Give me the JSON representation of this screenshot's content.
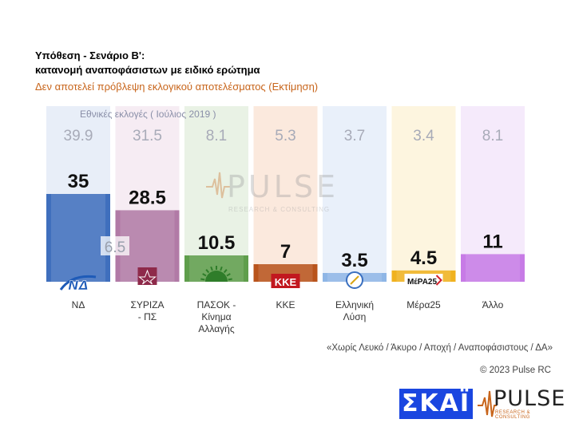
{
  "header": {
    "title_line1": "Υπόθεση - Σενάριο Β':",
    "title_line2": "κατανομή αναποφάσιστων με ειδικό ερώτημα",
    "subtitle": "Δεν αποτελεί πρόβλεψη εκλογικού αποτελέσματος   (Εκτίμηση)"
  },
  "chart_data": {
    "type": "bar",
    "categories": [
      "ΝΔ",
      "ΣΥΡΙΖΑ - ΠΣ",
      "ΠΑΣΟΚ - Κίνημα Αλλαγής",
      "ΚΚΕ",
      "Ελληνική Λύση",
      "Μέρα25",
      "Άλλο"
    ],
    "category_label_lines": [
      [
        "ΝΔ"
      ],
      [
        "ΣΥΡΙΖΑ",
        "- ΠΣ"
      ],
      [
        "ΠΑΣΟΚ -",
        "Κίνημα",
        "Αλλαγής"
      ],
      [
        "ΚΚΕ"
      ],
      [
        "Ελληνική",
        "Λύση"
      ],
      [
        "Μέρα25"
      ],
      [
        "Άλλο"
      ]
    ],
    "series": [
      {
        "name": "Εκτίμηση",
        "values": [
          35,
          28.5,
          10.5,
          7,
          3.5,
          4.5,
          11
        ],
        "labels": [
          "35",
          "28.5",
          "10.5",
          "7",
          "3.5",
          "4.5",
          "11"
        ]
      },
      {
        "name": "Εθνικές εκλογές  ( Ιούλιος 2019 )",
        "values": [
          39.9,
          31.5,
          8.1,
          5.3,
          3.7,
          3.4,
          8.1
        ],
        "labels": [
          "39.9",
          "31.5",
          "8.1",
          "5.3",
          "3.7",
          "3.4",
          "8.1"
        ]
      }
    ],
    "annotations": [
      {
        "category": "ΝΔ",
        "text": "6.5"
      }
    ],
    "ylim": [
      0,
      40
    ],
    "colors": [
      "#3f6fbd",
      "#b17aa6",
      "#5f9e4c",
      "#b9541c",
      "#8fb6e6",
      "#f0b21f",
      "#c77be6"
    ],
    "column_bg_colors": [
      "#e8eef8",
      "#f6ecf3",
      "#e9f2e5",
      "#fbe9dd",
      "#e9f0fa",
      "#fdf5df",
      "#f5eafb"
    ],
    "logo_icons": [
      "nd-logo-icon",
      "syriza-logo-icon",
      "pasok-sun-icon",
      "kke-logo-icon",
      "elliniki-lysi-icon",
      "mera25-logo-icon",
      ""
    ]
  },
  "prev_election_label": "Εθνικές εκλογές  ( Ιούλιος 2019 )",
  "footer": {
    "note": "«Χωρίς Λευκό / Άκυρο / Αποχή / Αναποφάσιστους / ΔΑ»",
    "copyright": "© 2023 Pulse RC"
  },
  "logos": {
    "skai": "ΣΚΑΪ",
    "pulse": "PULSE",
    "pulse_sub": "RESEARCH & CONSULTING",
    "watermark": "PULSE",
    "watermark_sub": "RESEARCH & CONSULTING",
    "kke": "ΚΚΕ",
    "nd": "ΝΔ",
    "mera25": "ΜέΡΑ25"
  }
}
